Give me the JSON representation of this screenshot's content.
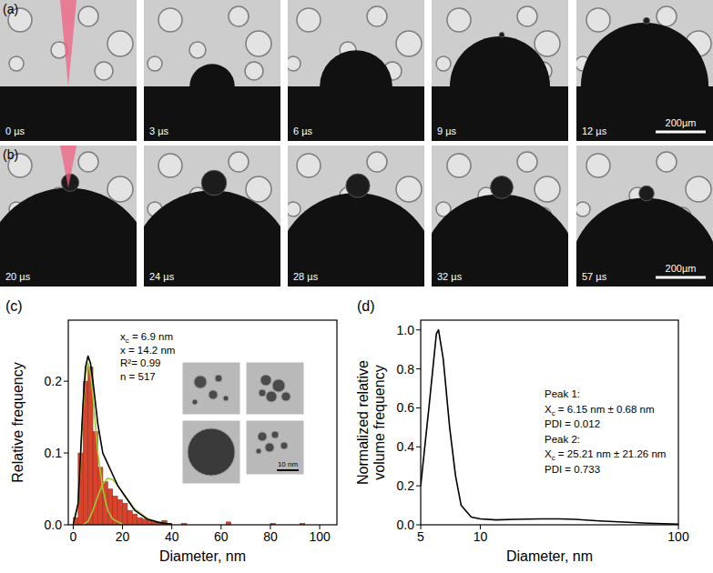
{
  "image_panels": [
    {
      "label": "(a)",
      "frames": [
        {
          "time": "0 µs",
          "dome_um": 0,
          "jet_um": 0
        },
        {
          "time": "3 µs",
          "dome_um": 90,
          "jet_um": 0
        },
        {
          "time": "6 µs",
          "dome_um": 145,
          "jet_um": 0
        },
        {
          "time": "9 µs",
          "dome_um": 200,
          "jet_um": 20
        },
        {
          "time": "12 µs",
          "dome_um": 255,
          "jet_um": 25
        }
      ],
      "scale_bar": {
        "value": 200,
        "label": "200µm"
      }
    },
    {
      "label": "(b)",
      "frames": [
        {
          "time": "20 µs",
          "dome_um": 340,
          "jet_um": 70
        },
        {
          "time": "24 µs",
          "dome_um": 330,
          "jet_um": 100
        },
        {
          "time": "28 µs",
          "dome_um": 320,
          "jet_um": 95
        },
        {
          "time": "32 µs",
          "dome_um": 315,
          "jet_um": 90
        },
        {
          "time": "57 µs",
          "dome_um": 300,
          "jet_um": 60
        }
      ],
      "scale_bar": {
        "value": 200,
        "label": "200µm"
      }
    }
  ],
  "chart_data": [
    {
      "type": "histogram",
      "panel_label": "(c)",
      "bins": [
        0,
        2,
        4,
        6,
        8,
        10,
        12,
        14,
        16,
        18,
        20,
        22,
        24,
        26,
        28,
        30,
        32,
        34,
        36,
        38,
        40,
        42,
        44,
        46,
        48,
        50,
        52,
        54,
        56,
        58,
        60,
        62,
        64,
        66,
        68,
        70,
        72,
        74,
        76,
        78,
        80,
        82,
        84,
        86,
        88,
        90,
        92,
        94,
        96
      ],
      "values": [
        0.01,
        0.1,
        0.2,
        0.22,
        0.13,
        0.08,
        0.06,
        0.05,
        0.04,
        0.035,
        0.03,
        0.02,
        0.015,
        0.01,
        0.008,
        0.006,
        0.004,
        0.004,
        0.006,
        0.002,
        0,
        0,
        0.002,
        0,
        0,
        0,
        0,
        0,
        0,
        0,
        0,
        0.004,
        0,
        0,
        0,
        0,
        0,
        0,
        0,
        0,
        0.002,
        0,
        0,
        0,
        0,
        0,
        0.002,
        0
      ],
      "color": "#d9432c",
      "series": [
        {
          "type": "line",
          "color": "#9acd32",
          "x": [
            0,
            2,
            4,
            5,
            6,
            7,
            8,
            10,
            12,
            14,
            16,
            20
          ],
          "values": [
            0,
            0.03,
            0.16,
            0.21,
            0.225,
            0.21,
            0.18,
            0.1,
            0.05,
            0.02,
            0.008,
            0.001
          ]
        },
        {
          "type": "line",
          "color": "#9acd32",
          "x": [
            4,
            6,
            8,
            10,
            12,
            14,
            16,
            18,
            20,
            25,
            30,
            35,
            40
          ],
          "values": [
            0,
            0.005,
            0.02,
            0.04,
            0.057,
            0.065,
            0.063,
            0.055,
            0.045,
            0.022,
            0.009,
            0.003,
            0.001
          ]
        },
        {
          "type": "line",
          "color": "#000000",
          "x": [
            0,
            2,
            4,
            5,
            6,
            7,
            8,
            10,
            12,
            14,
            16,
            18,
            20,
            25,
            30,
            35,
            40
          ],
          "values": [
            0,
            0.03,
            0.17,
            0.22,
            0.235,
            0.225,
            0.2,
            0.14,
            0.1,
            0.085,
            0.07,
            0.055,
            0.045,
            0.02,
            0.008,
            0.003,
            0.001
          ]
        }
      ],
      "xlim": [
        -2,
        107
      ],
      "xticks": [
        0,
        20,
        40,
        60,
        80,
        100
      ],
      "ylim": [
        0,
        0.285
      ],
      "yticks": [
        {
          "value": 0,
          "label": "0.0"
        },
        {
          "value": 0.1,
          "label": "0.1"
        },
        {
          "value": 0.2,
          "label": "0.2"
        }
      ],
      "x_label": "Diameter, nm",
      "y_label": "Relative frequency",
      "annotations": [
        {
          "text": "x",
          "sub": "c",
          "rest": " = 6.9 nm"
        },
        {
          "text": "x = 14.2 nm"
        },
        {
          "text": "R²= 0.99"
        },
        {
          "text": "n = 517"
        }
      ],
      "inset_scale_bar": "10 nm"
    },
    {
      "type": "line",
      "panel_label": "(d)",
      "log": "x",
      "color": "#000000",
      "x": [
        5,
        5.5,
        6,
        6.15,
        6.5,
        7,
        7.5,
        8,
        9,
        10,
        12,
        15,
        20,
        25,
        30,
        40,
        50,
        70,
        100
      ],
      "values": [
        0.2,
        0.6,
        0.98,
        1.0,
        0.85,
        0.5,
        0.25,
        0.1,
        0.04,
        0.03,
        0.025,
        0.028,
        0.03,
        0.03,
        0.028,
        0.02,
        0.015,
        0.008,
        0.003
      ],
      "xlim": [
        5,
        100
      ],
      "xticks": [
        5,
        10,
        100
      ],
      "ylim": [
        0,
        1.05
      ],
      "yticks": [
        {
          "value": 0,
          "label": "0.0"
        },
        {
          "value": 0.2,
          "label": "0.2"
        },
        {
          "value": 0.4,
          "label": "0.4"
        },
        {
          "value": 0.6,
          "label": "0.6"
        },
        {
          "value": 0.8,
          "label": "0.8"
        },
        {
          "value": 1,
          "label": "1.0"
        }
      ],
      "x_label": "Diameter, nm",
      "y_label": [
        "Normalized relative",
        "volume frequency"
      ],
      "annotations": [
        {
          "text": "Peak 1:"
        },
        {
          "text": "X",
          "sub": "c",
          "rest": " = 6.15 nm ± 0.68 nm"
        },
        {
          "text": "PDI = 0.012"
        },
        {
          "text": "Peak 2:"
        },
        {
          "text": "X",
          "sub": "c",
          "rest": " = 25.21 nm ± 21.26 nm"
        },
        {
          "text": "PDI = 0.733"
        }
      ]
    }
  ]
}
